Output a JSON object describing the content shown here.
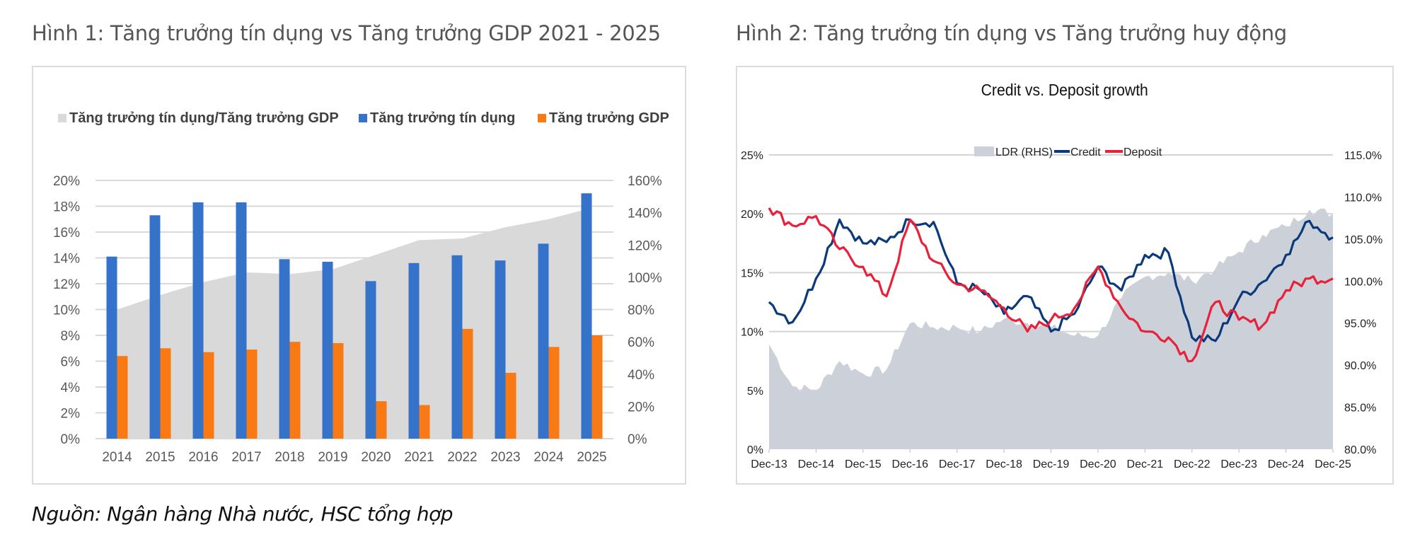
{
  "figure1": {
    "title": "Hình 1: Tăng trưởng tín dụng vs Tăng trưởng GDP 2021 - 2025",
    "legend": [
      {
        "label": "Tăng trưởng tín dụng/Tăng trưởng GDP",
        "color": "#d9d9d9"
      },
      {
        "label": "Tăng trưởng tín dụng",
        "color": "#3572c9"
      },
      {
        "label": "Tăng trưởng GDP",
        "color": "#f97a14"
      }
    ],
    "left_axis_ticks": [
      "0%",
      "2%",
      "4%",
      "6%",
      "8%",
      "10%",
      "12%",
      "14%",
      "16%",
      "18%",
      "20%"
    ],
    "right_axis_ticks": [
      "0%",
      "20%",
      "40%",
      "60%",
      "80%",
      "100%",
      "120%",
      "140%",
      "160%"
    ]
  },
  "figure2": {
    "title": "Hình 2: Tăng trưởng tín dụng vs Tăng trưởng huy động",
    "chart_title": "Credit vs. Deposit growth",
    "legend": [
      {
        "label": "LDR (RHS)",
        "color": "#ccd1d9"
      },
      {
        "label": "Credit",
        "color": "#0b3a7a"
      },
      {
        "label": "Deposit",
        "color": "#e8203a"
      }
    ],
    "left_axis_ticks": [
      "0%",
      "5%",
      "10%",
      "15%",
      "20%",
      "25%"
    ],
    "right_axis_ticks": [
      "80.0%",
      "85.0%",
      "90.0%",
      "95.0%",
      "100.0%",
      "105.0%",
      "110.0%",
      "115.0%"
    ],
    "x_ticks": [
      "Dec-13",
      "Dec-14",
      "Dec-15",
      "Dec-16",
      "Dec-17",
      "Dec-18",
      "Dec-19",
      "Dec-20",
      "Dec-21",
      "Dec-22",
      "Dec-23",
      "Dec-24",
      "Dec-25"
    ]
  },
  "source": "Nguồn: Ngân hàng Nhà nước, HSC tổng hợp",
  "chart_data": [
    {
      "type": "bar",
      "title": "Hình 1: Tăng trưởng tín dụng vs Tăng trưởng GDP 2021 - 2025",
      "categories": [
        "2014",
        "2015",
        "2016",
        "2017",
        "2018",
        "2019",
        "2020",
        "2021",
        "2022",
        "2023",
        "2024",
        "2025"
      ],
      "series": [
        {
          "name": "Tăng trưởng tín dụng",
          "type": "bar",
          "axis": "left",
          "values": [
            14.1,
            17.3,
            18.3,
            18.3,
            13.9,
            13.7,
            12.2,
            13.6,
            14.2,
            13.8,
            15.1,
            19.0
          ]
        },
        {
          "name": "Tăng trưởng GDP",
          "type": "bar",
          "axis": "left",
          "values": [
            6.4,
            7.0,
            6.7,
            6.9,
            7.5,
            7.4,
            2.9,
            2.6,
            8.5,
            5.1,
            7.1,
            8.0
          ]
        },
        {
          "name": "Tăng trưởng tín dụng/Tăng trưởng GDP",
          "type": "area",
          "axis": "right",
          "values": [
            80,
            89,
            97,
            103,
            102,
            105,
            114,
            123,
            124,
            131,
            136,
            143
          ]
        }
      ],
      "xlabel": "",
      "ylabel": "",
      "ylim": [
        0,
        20
      ],
      "y2lim": [
        0,
        160
      ],
      "grid": true,
      "legend_position": "top"
    },
    {
      "type": "line",
      "title": "Credit vs. Deposit growth",
      "x": [
        "Dec-13",
        "Jun-14",
        "Dec-14",
        "Jun-15",
        "Dec-15",
        "Jun-16",
        "Dec-16",
        "Jun-17",
        "Dec-17",
        "Jun-18",
        "Dec-18",
        "Jun-19",
        "Dec-19",
        "Jun-20",
        "Dec-20",
        "Jun-21",
        "Dec-21",
        "Jun-22",
        "Dec-22",
        "Jun-23",
        "Dec-23",
        "Jun-24",
        "Dec-24",
        "Jun-25",
        "Dec-25"
      ],
      "series": [
        {
          "name": "Credit",
          "axis": "left",
          "values": [
            12.5,
            10.8,
            14.5,
            19.5,
            17.5,
            17.6,
            19.5,
            19.3,
            14.1,
            13.5,
            11.5,
            13.0,
            10.0,
            11.5,
            15.5,
            13.5,
            16.5,
            16.7,
            9.5,
            9.2,
            12.8,
            14.2,
            16.5,
            19.4,
            18.0
          ]
        },
        {
          "name": "Deposit",
          "axis": "left",
          "values": [
            20.5,
            19.0,
            19.8,
            17.0,
            15.5,
            13.0,
            19.5,
            16.0,
            14.0,
            13.5,
            12.0,
            10.0,
            11.0,
            12.0,
            15.5,
            12.0,
            10.0,
            9.5,
            7.5,
            12.5,
            11.0,
            10.5,
            13.5,
            14.5,
            14.5
          ]
        },
        {
          "name": "LDR (RHS)",
          "type": "area",
          "axis": "right",
          "values": [
            92.5,
            87.5,
            87.0,
            90.5,
            89.0,
            89.5,
            95.0,
            94.5,
            94.5,
            94.0,
            95.5,
            95.0,
            94.5,
            93.5,
            93.5,
            98.0,
            100.5,
            101.0,
            100.0,
            101.5,
            103.5,
            105.5,
            106.5,
            108.5,
            108.0
          ]
        }
      ],
      "xlabel": "",
      "ylabel": "",
      "ylim": [
        0,
        25
      ],
      "y2lim": [
        80,
        115
      ],
      "grid": true,
      "legend_position": "top"
    }
  ]
}
